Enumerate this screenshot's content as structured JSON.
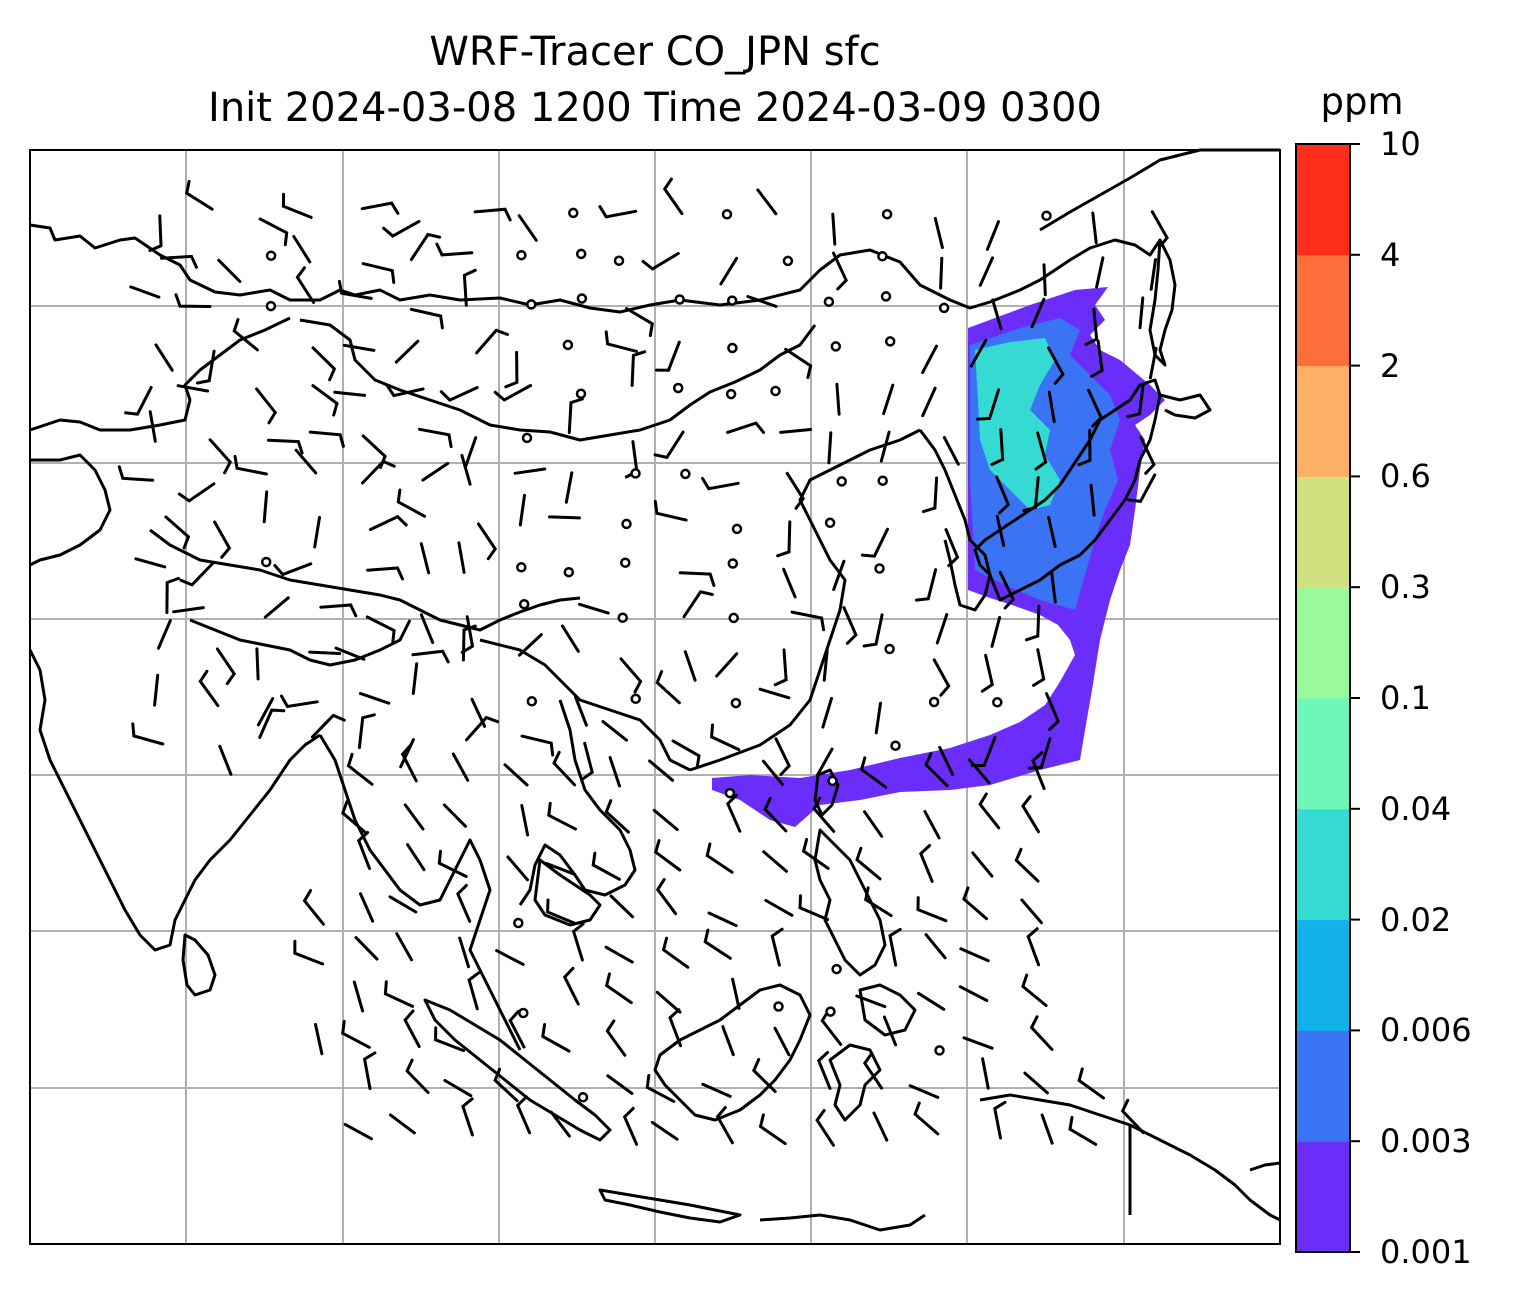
{
  "title_line1": "WRF-Tracer CO_JPN sfc",
  "title_line2": "Init 2024-03-08 1200 Time 2024-03-09 0300",
  "colorbar": {
    "unit": "ppm",
    "ticks": [
      "0.001",
      "0.003",
      "0.006",
      "0.02",
      "0.04",
      "0.1",
      "0.3",
      "0.6",
      "2",
      "4",
      "10"
    ],
    "colors": [
      "#6b2dfa",
      "#3a73f4",
      "#12b1ea",
      "#35dbd3",
      "#6df8b9",
      "#9cf99a",
      "#d2e17f",
      "#fdb064",
      "#fd6f3a",
      "#fd2d1a"
    ]
  },
  "tracer_color_low": "#6b2dfa",
  "tracer_color_mid": "#3a73f4",
  "tracer_color_high": "#35dbd3",
  "map_style": {
    "coastline": "#000000",
    "gridlines": "#b0b0b0",
    "wind_barbs": "#000000"
  }
}
